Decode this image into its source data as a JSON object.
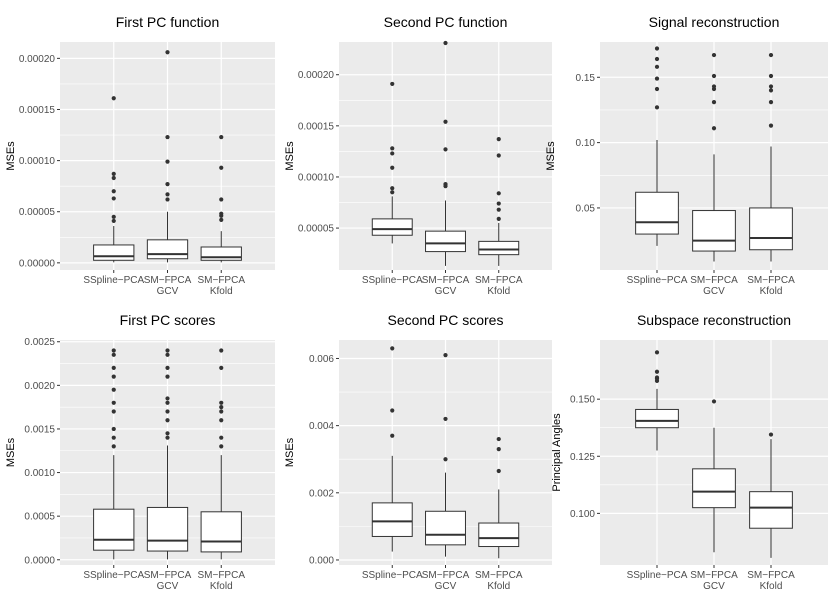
{
  "chart_data": [
    {
      "type": "box",
      "title": "First PC function",
      "ylabel": "MSEs",
      "ylim": [
        -7e-06,
        0.000216
      ],
      "yticks": [
        0,
        5e-05,
        0.0001,
        0.00015,
        0.0002
      ],
      "ytick_labels": [
        "0.00000",
        "0.00005",
        "0.00010",
        "0.00015",
        "0.00020"
      ],
      "categories": [
        [
          "SSpline−PCA"
        ],
        [
          "SM−FPCA",
          "GCV"
        ],
        [
          "SM−FPCA",
          "Kfold"
        ]
      ],
      "boxes": [
        {
          "q1": 2.5e-06,
          "median": 6.5e-06,
          "q3": 1.75e-05,
          "whisker_low": 5e-07,
          "whisker_high": 3.6e-05,
          "outliers": [
            4.1e-05,
            4.5e-05,
            6.3e-05,
            7e-05,
            8.3e-05,
            8.7e-05,
            0.000161
          ]
        },
        {
          "q1": 4e-06,
          "median": 8.5e-06,
          "q3": 2.25e-05,
          "whisker_low": 5e-07,
          "whisker_high": 5e-05,
          "outliers": [
            6.2e-05,
            6.7e-05,
            7.7e-05,
            9.9e-05,
            0.000123,
            0.000206
          ]
        },
        {
          "q1": 2.5e-06,
          "median": 5.5e-06,
          "q3": 1.55e-05,
          "whisker_low": 5e-07,
          "whisker_high": 3.1e-05,
          "outliers": [
            4.2e-05,
            4.6e-05,
            4.8e-05,
            6.2e-05,
            9.3e-05,
            0.000123
          ]
        }
      ]
    },
    {
      "type": "box",
      "title": "Second PC function",
      "ylabel": "MSEs",
      "ylim": [
        9e-06,
        0.000232
      ],
      "yticks": [
        5e-05,
        0.0001,
        0.00015,
        0.0002
      ],
      "ytick_labels": [
        "0.00005",
        "0.00010",
        "0.00015",
        "0.00020"
      ],
      "categories": [
        [
          "SSpline−PCA"
        ],
        [
          "SM−FPCA",
          "GCV"
        ],
        [
          "SM−FPCA",
          "Kfold"
        ]
      ],
      "boxes": [
        {
          "q1": 4.3e-05,
          "median": 4.9e-05,
          "q3": 5.9e-05,
          "whisker_low": 3.5e-05,
          "whisker_high": 8.1e-05,
          "outliers": [
            8.5e-05,
            8.9e-05,
            0.000109,
            0.000123,
            0.000128,
            0.000191
          ]
        },
        {
          "q1": 2.7e-05,
          "median": 3.5e-05,
          "q3": 4.7e-05,
          "whisker_low": 1.3e-05,
          "whisker_high": 7.7e-05,
          "outliers": [
            9.1e-05,
            9.3e-05,
            0.000127,
            0.000154,
            0.000231
          ]
        },
        {
          "q1": 2.4e-05,
          "median": 2.9e-05,
          "q3": 3.7e-05,
          "whisker_low": 1.3e-05,
          "whisker_high": 5.5e-05,
          "outliers": [
            5.9e-05,
            6.8e-05,
            7.4e-05,
            8.4e-05,
            0.000121,
            0.000137
          ]
        }
      ]
    },
    {
      "type": "box",
      "title": "Signal reconstruction",
      "ylabel": "MSEs",
      "ylim": [
        0.0025,
        0.177
      ],
      "yticks": [
        0.05,
        0.1,
        0.15
      ],
      "ytick_labels": [
        "0.05",
        "0.10",
        "0.15"
      ],
      "categories": [
        [
          "SSpline−PCA"
        ],
        [
          "SM−FPCA",
          "GCV"
        ],
        [
          "SM−FPCA",
          "Kfold"
        ]
      ],
      "boxes": [
        {
          "q1": 0.03,
          "median": 0.039,
          "q3": 0.062,
          "whisker_low": 0.021,
          "whisker_high": 0.102,
          "outliers": [
            0.127,
            0.141,
            0.149,
            0.158,
            0.164,
            0.172
          ]
        },
        {
          "q1": 0.017,
          "median": 0.025,
          "q3": 0.048,
          "whisker_low": 0.009,
          "whisker_high": 0.091,
          "outliers": [
            0.111,
            0.131,
            0.141,
            0.143,
            0.151,
            0.167
          ]
        },
        {
          "q1": 0.018,
          "median": 0.027,
          "q3": 0.05,
          "whisker_low": 0.009,
          "whisker_high": 0.097,
          "outliers": [
            0.113,
            0.131,
            0.14,
            0.143,
            0.151,
            0.167
          ]
        }
      ]
    },
    {
      "type": "box",
      "title": "First PC scores",
      "ylabel": "MSEs",
      "ylim": [
        -6e-05,
        0.00252
      ],
      "yticks": [
        0,
        0.0005,
        0.001,
        0.0015,
        0.002,
        0.0025
      ],
      "ytick_labels": [
        "0.0000",
        "0.0005",
        "0.0010",
        "0.0015",
        "0.0020",
        "0.0025"
      ],
      "categories": [
        [
          "SSpline−PCA"
        ],
        [
          "SM−FPCA",
          "GCV"
        ],
        [
          "SM−FPCA",
          "Kfold"
        ]
      ],
      "boxes": [
        {
          "q1": 0.00011,
          "median": 0.00023,
          "q3": 0.00058,
          "whisker_low": 5e-06,
          "whisker_high": 0.0012,
          "outliers": [
            0.0013,
            0.0014,
            0.0015,
            0.0017,
            0.0018,
            0.00195,
            0.0021,
            0.0022,
            0.00235,
            0.0024
          ]
        },
        {
          "q1": 0.0001,
          "median": 0.00022,
          "q3": 0.0006,
          "whisker_low": 5e-06,
          "whisker_high": 0.00131,
          "outliers": [
            0.0014,
            0.00145,
            0.0016,
            0.0017,
            0.0018,
            0.00185,
            0.0021,
            0.0022,
            0.00235,
            0.0024
          ]
        },
        {
          "q1": 9e-05,
          "median": 0.00021,
          "q3": 0.00055,
          "whisker_low": 5e-06,
          "whisker_high": 0.0012,
          "outliers": [
            0.0013,
            0.0014,
            0.0016,
            0.0017,
            0.00175,
            0.0018,
            0.0022,
            0.0024
          ]
        }
      ]
    },
    {
      "type": "box",
      "title": "Second PC scores",
      "ylabel": "MSEs",
      "ylim": [
        -0.00015,
        0.00655
      ],
      "yticks": [
        0,
        0.002,
        0.004,
        0.006
      ],
      "ytick_labels": [
        "0.000",
        "0.002",
        "0.004",
        "0.006"
      ],
      "categories": [
        [
          "SSpline−PCA"
        ],
        [
          "SM−FPCA",
          "GCV"
        ],
        [
          "SM−FPCA",
          "Kfold"
        ]
      ],
      "boxes": [
        {
          "q1": 0.0007,
          "median": 0.00115,
          "q3": 0.0017,
          "whisker_low": 0.00025,
          "whisker_high": 0.0031,
          "outliers": [
            0.0037,
            0.00445,
            0.0063
          ]
        },
        {
          "q1": 0.00045,
          "median": 0.00075,
          "q3": 0.00145,
          "whisker_low": 0.0001,
          "whisker_high": 0.0026,
          "outliers": [
            0.003,
            0.0042,
            0.0061
          ]
        },
        {
          "q1": 0.0004,
          "median": 0.00065,
          "q3": 0.0011,
          "whisker_low": 5e-05,
          "whisker_high": 0.0021,
          "outliers": [
            0.00265,
            0.0033,
            0.0036
          ]
        }
      ]
    },
    {
      "type": "box",
      "title": "Subspace reconstruction",
      "ylabel": "Principal Angles",
      "ylim": [
        0.0774,
        0.1759
      ],
      "yticks": [
        0.1,
        0.125,
        0.15
      ],
      "ytick_labels": [
        "0.100",
        "0.125",
        "0.150"
      ],
      "categories": [
        [
          "SSpline−PCA"
        ],
        [
          "SM−FPCA",
          "GCV"
        ],
        [
          "SM−FPCA",
          "Kfold"
        ]
      ],
      "boxes": [
        {
          "q1": 0.1375,
          "median": 0.1405,
          "q3": 0.1455,
          "whisker_low": 0.1275,
          "whisker_high": 0.1545,
          "outliers": [
            0.158,
            0.159,
            0.1595,
            0.162,
            0.1705
          ]
        },
        {
          "q1": 0.1025,
          "median": 0.1095,
          "q3": 0.1195,
          "whisker_low": 0.083,
          "whisker_high": 0.1375,
          "outliers": [
            0.149
          ]
        },
        {
          "q1": 0.0935,
          "median": 0.1025,
          "q3": 0.1095,
          "whisker_low": 0.0805,
          "whisker_high": 0.1325,
          "outliers": [
            0.1345
          ]
        }
      ]
    }
  ]
}
